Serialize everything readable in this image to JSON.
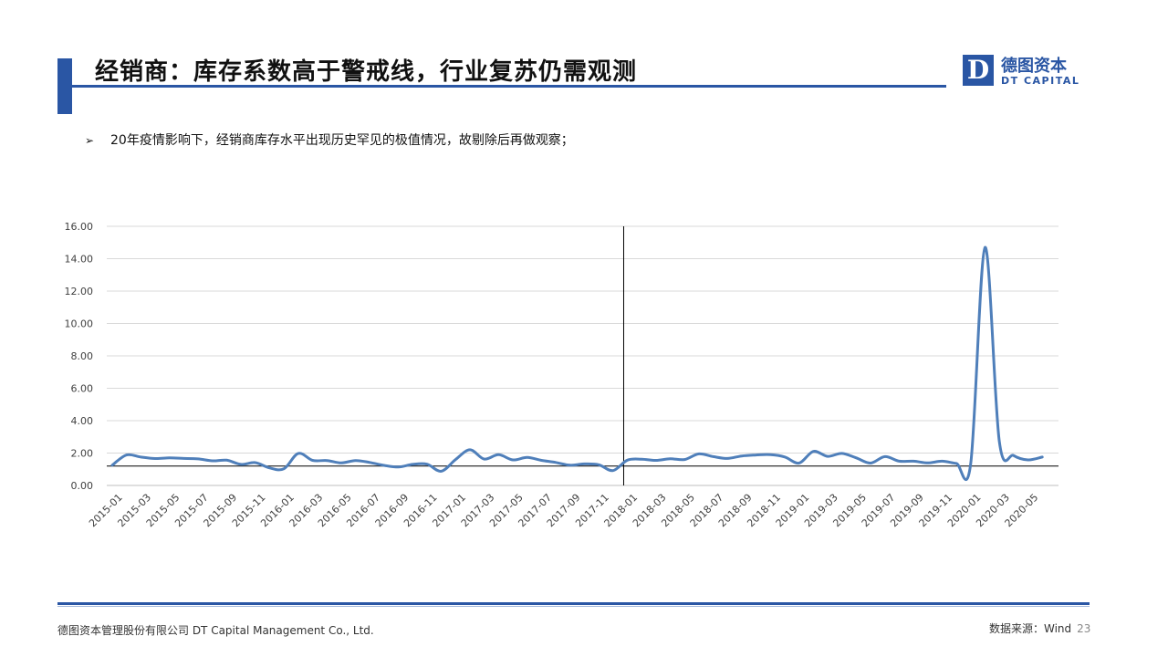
{
  "header": {
    "title": "经销商：库存系数高于警戒线，行业复苏仍需观测",
    "logo_mark": "D",
    "logo_cn": "德图资本",
    "logo_en": "DT CAPITAL"
  },
  "bullet": {
    "marker": "➢",
    "text": "20年疫情影响下，经销商库存水平出现历史罕见的极值情况，故剔除后再做观察；"
  },
  "chart_data": {
    "type": "line",
    "title": "",
    "xlabel": "",
    "ylabel": "",
    "ylim": [
      0,
      16
    ],
    "yticks": [
      "0.00",
      "2.00",
      "4.00",
      "6.00",
      "8.00",
      "10.00",
      "12.00",
      "14.00",
      "16.00"
    ],
    "grid": true,
    "legend": "none",
    "x_tick_labels": [
      "2015-01",
      "2015-03",
      "2015-05",
      "2015-07",
      "2015-09",
      "2015-11",
      "2016-01",
      "2016-03",
      "2016-05",
      "2016-07",
      "2016-09",
      "2016-11",
      "2017-01",
      "2017-03",
      "2017-05",
      "2017-07",
      "2017-09",
      "2017-11",
      "2018-01",
      "2018-03",
      "2018-05",
      "2018-07",
      "2018-09",
      "2018-11",
      "2019-01",
      "2019-03",
      "2019-05",
      "2019-07",
      "2019-09",
      "2019-11",
      "2020-01",
      "2020-03",
      "2020-05"
    ],
    "x": [
      "2015-01",
      "2015-02",
      "2015-03",
      "2015-04",
      "2015-05",
      "2015-06",
      "2015-07",
      "2015-08",
      "2015-09",
      "2015-10",
      "2015-11",
      "2015-12",
      "2016-01",
      "2016-02",
      "2016-03",
      "2016-04",
      "2016-05",
      "2016-06",
      "2016-07",
      "2016-08",
      "2016-09",
      "2016-10",
      "2016-11",
      "2016-12",
      "2017-01",
      "2017-02",
      "2017-03",
      "2017-04",
      "2017-05",
      "2017-06",
      "2017-07",
      "2017-08",
      "2017-09",
      "2017-10",
      "2017-11",
      "2017-12",
      "2018-01",
      "2018-02",
      "2018-03",
      "2018-04",
      "2018-05",
      "2018-06",
      "2018-07",
      "2018-08",
      "2018-09",
      "2018-10",
      "2018-11",
      "2018-12",
      "2019-01",
      "2019-02",
      "2019-03",
      "2019-04",
      "2019-05",
      "2019-06",
      "2019-07",
      "2019-08",
      "2019-09",
      "2019-10",
      "2019-11",
      "2019-12",
      "2020-01",
      "2020-02",
      "2020-03",
      "2020-04",
      "2020-05",
      "2020-06"
    ],
    "series": [
      {
        "name": "",
        "color": "#4f7fba",
        "values": [
          1.25,
          1.88,
          1.75,
          1.66,
          1.7,
          1.67,
          1.64,
          1.52,
          1.56,
          1.3,
          1.41,
          1.08,
          1.03,
          1.98,
          1.55,
          1.54,
          1.39,
          1.54,
          1.42,
          1.24,
          1.14,
          1.3,
          1.31,
          0.88,
          1.6,
          2.2,
          1.63,
          1.9,
          1.58,
          1.73,
          1.55,
          1.42,
          1.25,
          1.33,
          1.28,
          0.92,
          1.56,
          1.62,
          1.55,
          1.65,
          1.6,
          1.95,
          1.78,
          1.67,
          1.82,
          1.88,
          1.9,
          1.76,
          1.38,
          2.1,
          1.8,
          1.98,
          1.7,
          1.38,
          1.78,
          1.5,
          1.5,
          1.39,
          1.5,
          1.36,
          1.35,
          14.7,
          2.7,
          1.85,
          1.58,
          1.75
        ]
      }
    ],
    "reference_lines": {
      "horizontal_y": 1.2,
      "vertical_x": "2018-01"
    }
  },
  "footer": {
    "company": "德图资本管理股份有限公司  DT Capital  Management  Co., Ltd.",
    "source": "数据来源：Wind",
    "page": "23"
  }
}
